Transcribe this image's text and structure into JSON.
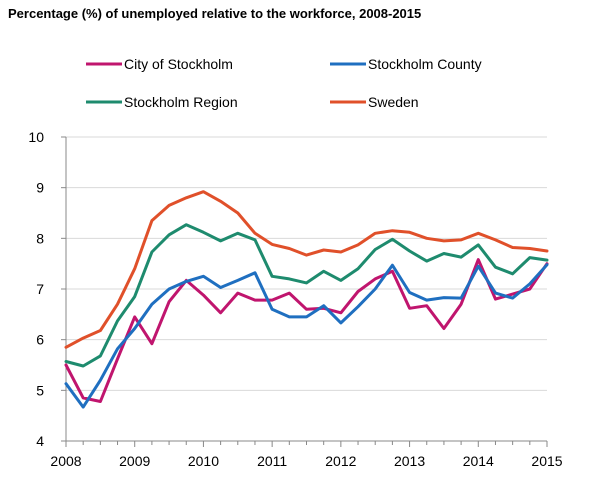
{
  "chart_data": {
    "type": "line",
    "title": "Percentage (%) of unemployed relative to the workforce, 2008-2015",
    "xlabel": "",
    "ylabel": "",
    "ylim": [
      4,
      10
    ],
    "y_ticks": [
      "4",
      "5",
      "6",
      "7",
      "8",
      "9",
      "10"
    ],
    "x_tick_labels": [
      "2008",
      "2009",
      "2010",
      "2011",
      "2012",
      "2013",
      "2014",
      "2015"
    ],
    "x_start_year": 2008,
    "points_per_year": 4,
    "grid": "horizontal",
    "legend_position": "top",
    "series": [
      {
        "name": "City of Stockholm",
        "color": "#c0156e",
        "values": [
          5.5,
          4.85,
          4.78,
          5.62,
          6.45,
          5.92,
          6.75,
          7.17,
          6.88,
          6.53,
          6.92,
          6.78,
          6.78,
          6.92,
          6.6,
          6.62,
          6.53,
          6.95,
          7.2,
          7.35,
          6.62,
          6.67,
          6.22,
          6.7,
          7.58,
          6.8,
          6.9,
          7.0,
          7.5
        ]
      },
      {
        "name": "Stockholm County",
        "color": "#1f6fc0",
        "values": [
          5.13,
          4.67,
          5.2,
          5.82,
          6.22,
          6.7,
          7.0,
          7.15,
          7.25,
          7.03,
          7.17,
          7.32,
          6.6,
          6.45,
          6.45,
          6.67,
          6.33,
          6.65,
          7.0,
          7.47,
          6.93,
          6.78,
          6.83,
          6.82,
          7.45,
          6.92,
          6.82,
          7.1,
          7.48
        ]
      },
      {
        "name": "Stockholm Region",
        "color": "#1e8b6e",
        "values": [
          5.57,
          5.48,
          5.68,
          6.37,
          6.85,
          7.73,
          8.07,
          8.27,
          8.12,
          7.95,
          8.1,
          7.97,
          7.25,
          7.2,
          7.12,
          7.35,
          7.17,
          7.4,
          7.78,
          7.98,
          7.75,
          7.55,
          7.7,
          7.63,
          7.87,
          7.43,
          7.3,
          7.62,
          7.57
        ]
      },
      {
        "name": "Sweden",
        "color": "#e0502a",
        "values": [
          5.85,
          6.03,
          6.18,
          6.7,
          7.4,
          8.35,
          8.65,
          8.8,
          8.92,
          8.73,
          8.5,
          8.1,
          7.88,
          7.8,
          7.67,
          7.77,
          7.73,
          7.87,
          8.1,
          8.15,
          8.12,
          8.0,
          7.95,
          7.97,
          8.1,
          7.97,
          7.82,
          7.8,
          7.75
        ]
      }
    ]
  }
}
